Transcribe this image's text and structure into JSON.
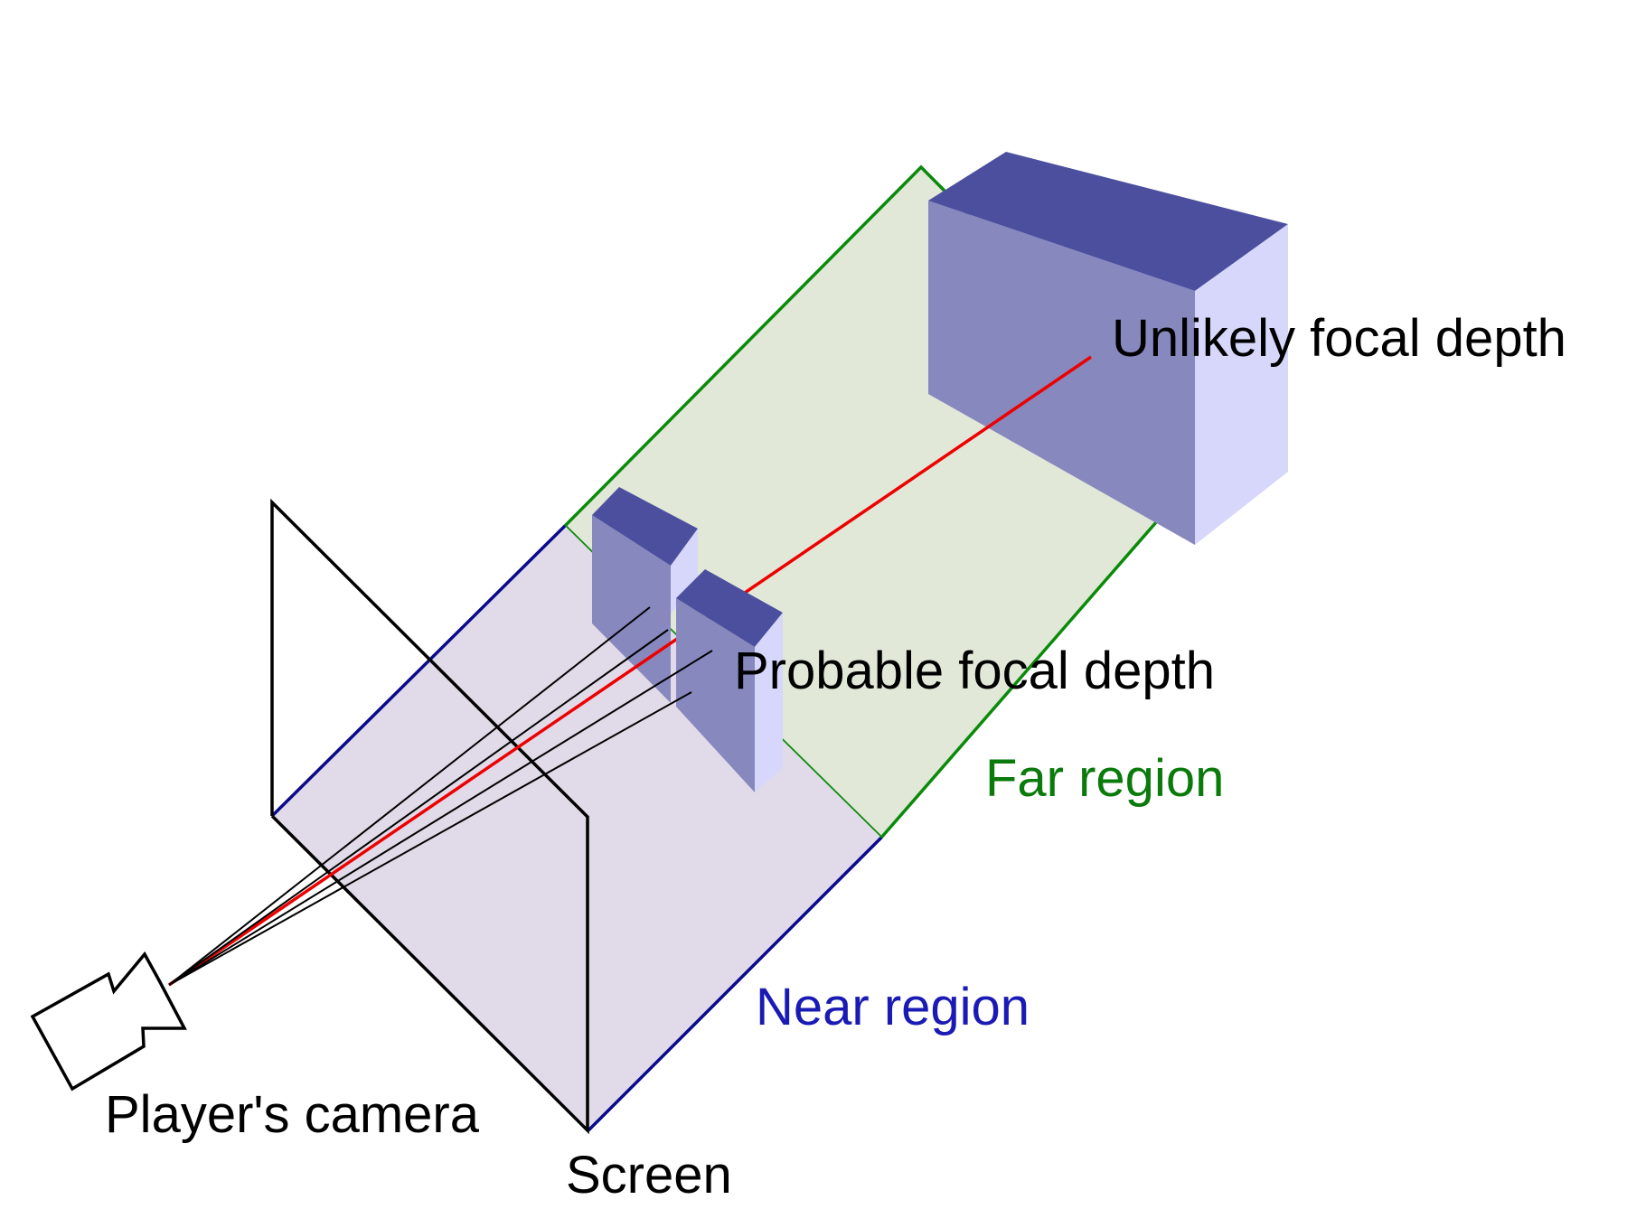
{
  "diagram": {
    "labels": {
      "unlikely_focal_depth": "Unlikely focal depth",
      "probable_focal_depth": "Probable focal depth",
      "far_region": "Far region",
      "near_region": "Near region",
      "players_camera": "Player's camera",
      "screen": "Screen"
    },
    "colors": {
      "far_region_fill": "#e1e8d8",
      "far_region_stroke": "#0a8a0a",
      "far_region_text": "#0a7a0a",
      "near_region_fill": "#e1dbe9",
      "near_region_stroke": "#0a0a8c",
      "near_region_text": "#1a1ab4",
      "object_top": "#4c4f9e",
      "object_front": "#8788be",
      "object_side": "#d6d7fb",
      "focal_ray": "#ee0000",
      "sight_lines": "#000000",
      "outline": "#000000"
    },
    "icons": [
      "camera-icon"
    ]
  }
}
